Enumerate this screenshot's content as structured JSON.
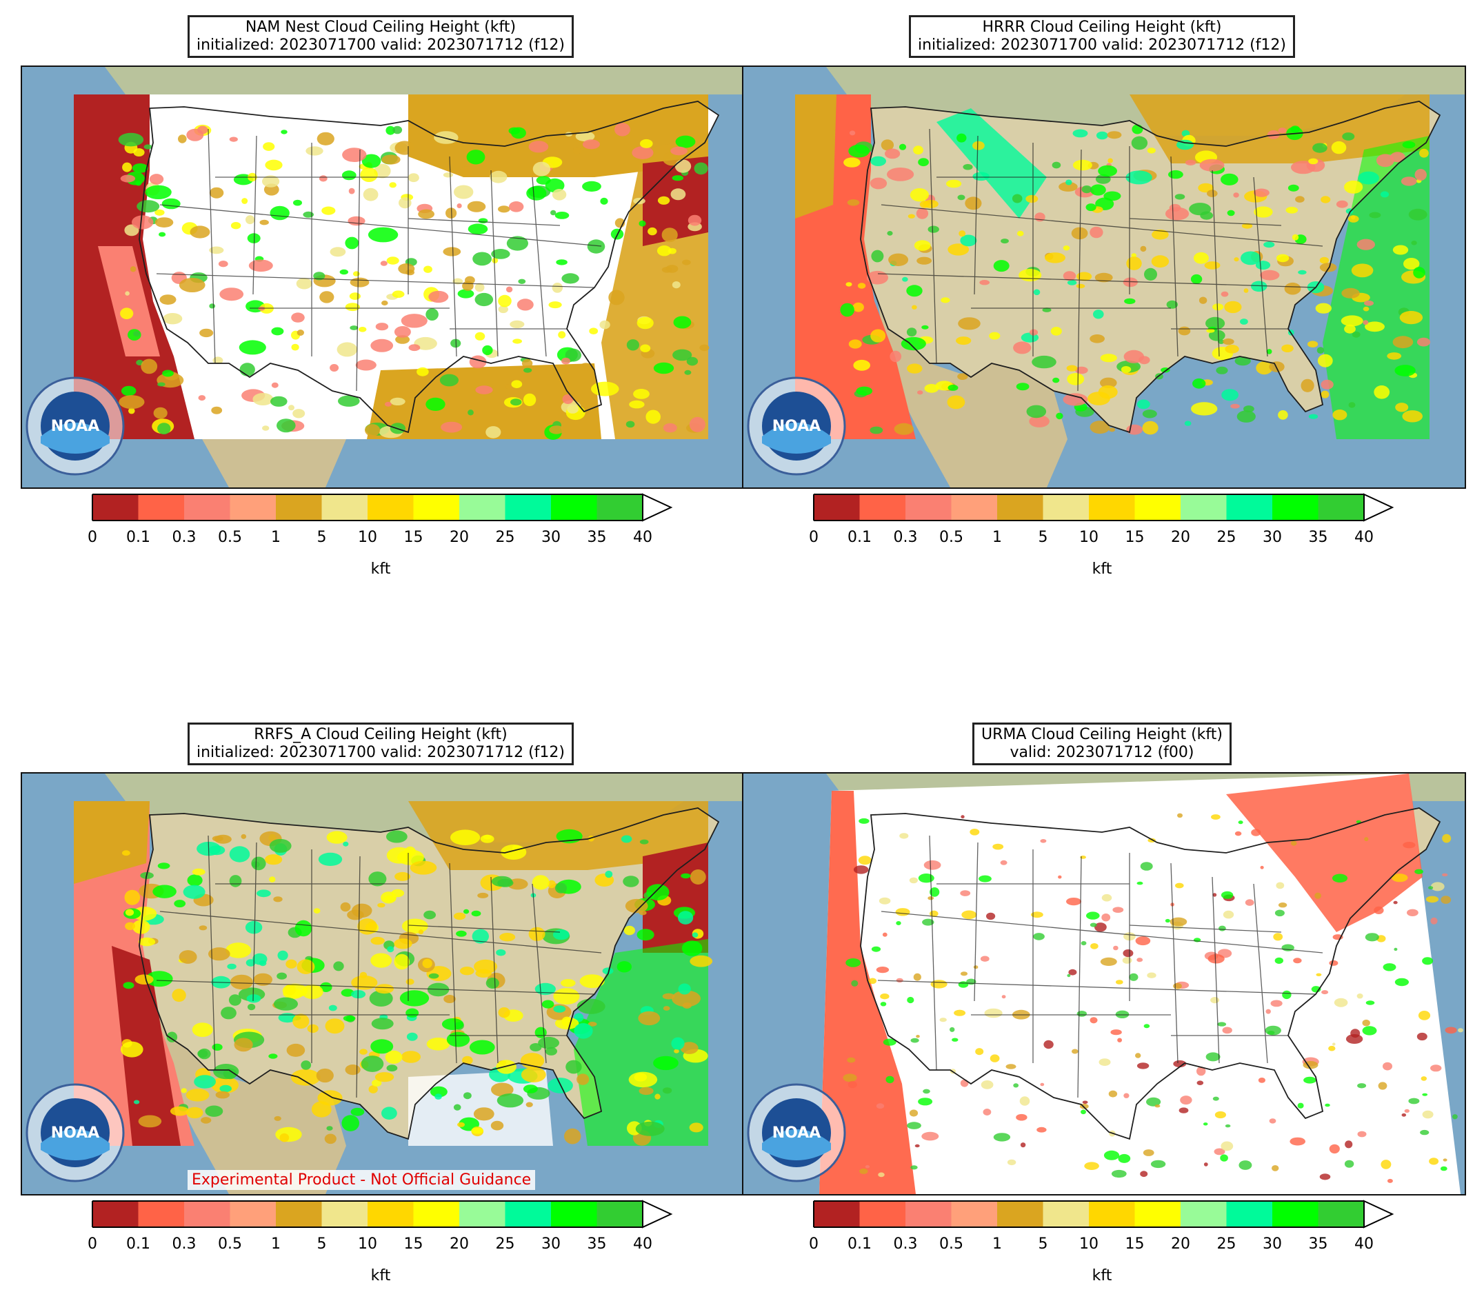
{
  "panels": [
    {
      "key": "nam",
      "title_line1": "NAM Nest Cloud Ceiling Height (kft)",
      "title_line2": "initialized: 2023071700 valid: 2023071712 (f12)",
      "style": "nam"
    },
    {
      "key": "hrrr",
      "title_line1": "HRRR Cloud Ceiling Height (kft)",
      "title_line2": "initialized: 2023071700 valid: 2023071712 (f12)",
      "style": "hrrr"
    },
    {
      "key": "rrfs",
      "title_line1": "RRFS_A Cloud Ceiling Height (kft)",
      "title_line2": "initialized: 2023071700 valid: 2023071712 (f12)",
      "style": "rrfs",
      "disclaimer": "Experimental Product - Not Official Guidance"
    },
    {
      "key": "urma",
      "title_line1": "URMA Cloud Ceiling Height (kft)",
      "title_line2": "valid: 2023071712 (f00)",
      "style": "urma"
    }
  ],
  "colorbar": {
    "unit": "kft",
    "ticks": [
      "0",
      "0.1",
      "0.3",
      "0.5",
      "1",
      "5",
      "10",
      "15",
      "20",
      "25",
      "30",
      "35",
      "40"
    ],
    "colors": [
      "#b22222",
      "#ff6347",
      "#fa8072",
      "#ffa07a",
      "#daa520",
      "#f0e68c",
      "#ffd700",
      "#ffff00",
      "#98fb98",
      "#00fa9a",
      "#00ff00",
      "#32cd32"
    ],
    "extend": "max"
  },
  "logo_text": "NOAA",
  "colors": {
    "ocean": "#7aa7c7",
    "land": "#d9cfa8",
    "clear": "#ffffff",
    "border": "#1e1e1e"
  }
}
